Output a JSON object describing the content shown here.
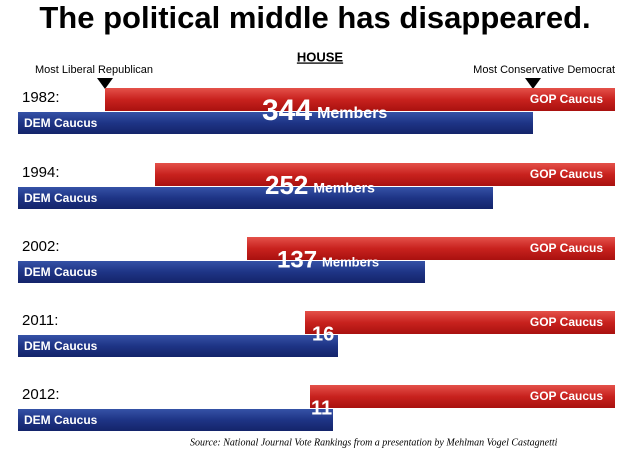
{
  "title": "The political middle has disappeared.",
  "subtitle": "HOUSE",
  "left_marker": "Most Liberal Republican",
  "right_marker": "Most Conservative Democrat",
  "rows": [
    {
      "year": "1982:",
      "gop": "GOP Caucus",
      "dem": "DEM Caucus",
      "overlap": 344,
      "unit": "Members"
    },
    {
      "year": "1994:",
      "gop": "GOP Caucus",
      "dem": "DEM Caucus",
      "overlap": 252,
      "unit": "Members"
    },
    {
      "year": "2002:",
      "gop": "GOP Caucus",
      "dem": "DEM Caucus",
      "overlap": 137,
      "unit": "Members"
    },
    {
      "year": "2011:",
      "gop": "GOP Caucus",
      "dem": "DEM Caucus",
      "overlap": 16
    },
    {
      "year": "2012:",
      "gop": "GOP Caucus",
      "dem": "DEM Caucus",
      "overlap": 11
    }
  ],
  "source": "Source: National Journal Vote Rankings from a presentation by Mehlman Vogel Castagnetti"
}
